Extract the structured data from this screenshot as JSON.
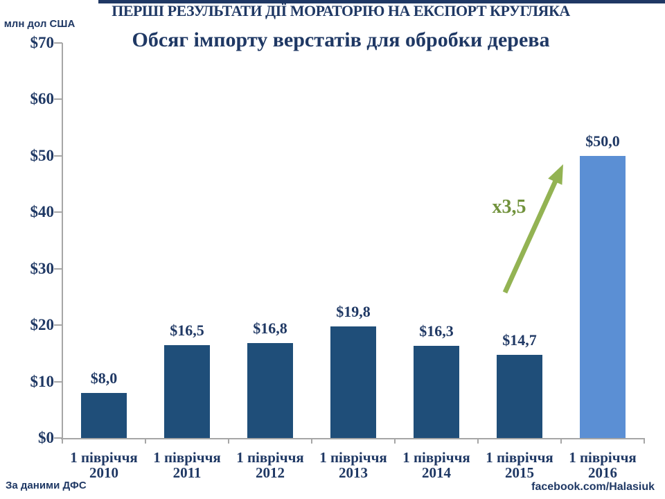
{
  "page": {
    "header_title": "ПЕРШІ РЕЗУЛЬТАТИ ДІЇ МОРАТОРІЮ НА ЕКСПОРТ КРУГЛЯКА",
    "chart_title": "Обсяг імпорту верстатів для обробки дерева",
    "axis_unit_label": "млн дол США",
    "source_note": "За даними ДФС",
    "credit": "facebook.com/Halasiuk"
  },
  "chart_data": {
    "type": "bar",
    "title": "Обсяг імпорту верстатів для обробки дерева",
    "xlabel": "",
    "ylabel": "млн дол США",
    "ylim": [
      0,
      70
    ],
    "ytick_step": 10,
    "ytick_labels": [
      "$0",
      "$10",
      "$20",
      "$30",
      "$40",
      "$50",
      "$60",
      "$70"
    ],
    "grid": false,
    "legend": "none",
    "categories": [
      {
        "period": "1 півріччя",
        "year": "2010"
      },
      {
        "period": "1 півріччя",
        "year": "2011"
      },
      {
        "period": "1 півріччя",
        "year": "2012"
      },
      {
        "period": "1 півріччя",
        "year": "2013"
      },
      {
        "period": "1 півріччя",
        "year": "2014"
      },
      {
        "period": "1 півріччя",
        "year": "2015"
      },
      {
        "period": "1 півріччя",
        "year": "2016"
      }
    ],
    "values": [
      8.0,
      16.5,
      16.8,
      19.8,
      16.3,
      14.7,
      50.0
    ],
    "value_labels": [
      "$8,0",
      "$16,5",
      "$16,8",
      "$19,8",
      "$16,3",
      "$14,7",
      "$50,0"
    ],
    "bar_color": "#1F4E79",
    "highlight_index": 6,
    "highlight_color": "#5B8FD4",
    "annotation": {
      "text": "x3,5",
      "color": "#71923C",
      "arrow_color": "#93B353"
    }
  },
  "colors": {
    "title_navy": "#1F3864",
    "axis_gray": "#A6A6A6"
  }
}
